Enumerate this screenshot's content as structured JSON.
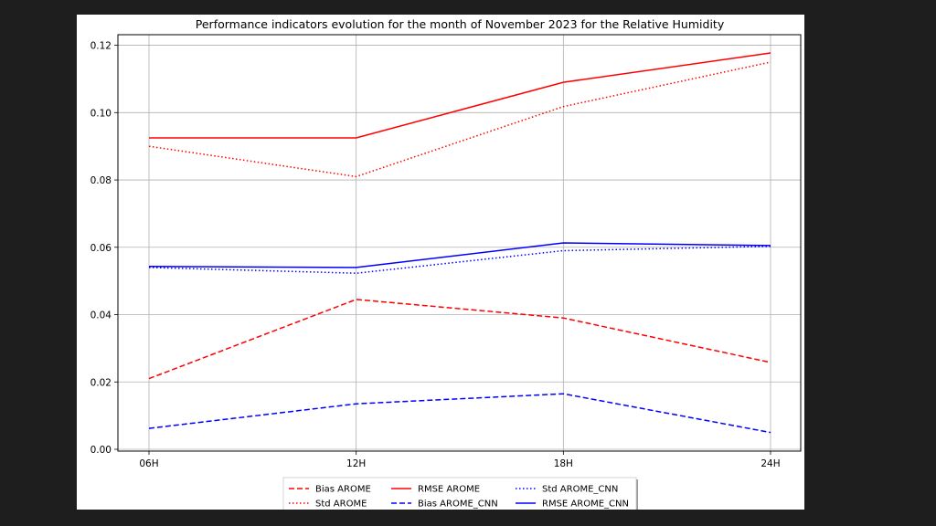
{
  "chart_data": {
    "type": "line",
    "title": "Performance indicators evolution for the month of November 2023 for the Relative Humidity",
    "xlabel": "",
    "ylabel": "",
    "categories": [
      "06H",
      "12H",
      "18H",
      "24H"
    ],
    "ylim": [
      0,
      0.122
    ],
    "yticks": [
      "0.00",
      "0.02",
      "0.04",
      "0.06",
      "0.08",
      "0.10",
      "0.12"
    ],
    "ytick_values": [
      0,
      0.02,
      0.04,
      0.06,
      0.08,
      0.1,
      0.12
    ],
    "grid": true,
    "legend_position": "bottom-center",
    "series": [
      {
        "name": "Bias AROME",
        "color": "#ff0000",
        "style": "dashed",
        "values": [
          0.021,
          0.0445,
          0.039,
          0.0258
        ]
      },
      {
        "name": "RMSE AROME",
        "color": "#ff0000",
        "style": "solid",
        "values": [
          0.0925,
          0.0925,
          0.109,
          0.1177
        ]
      },
      {
        "name": "Std AROME_CNN",
        "color": "#0000ff",
        "style": "dotted",
        "values": [
          0.054,
          0.0523,
          0.059,
          0.0603
        ]
      },
      {
        "name": "Std AROME",
        "color": "#ff0000",
        "style": "dotted",
        "values": [
          0.09,
          0.081,
          0.1018,
          0.115
        ]
      },
      {
        "name": "Bias AROME_CNN",
        "color": "#0000ff",
        "style": "dashed",
        "values": [
          0.0062,
          0.0135,
          0.0165,
          0.005
        ]
      },
      {
        "name": "RMSE AROME_CNN",
        "color": "#0000ff",
        "style": "solid",
        "values": [
          0.0543,
          0.054,
          0.0613,
          0.0605
        ]
      }
    ]
  }
}
